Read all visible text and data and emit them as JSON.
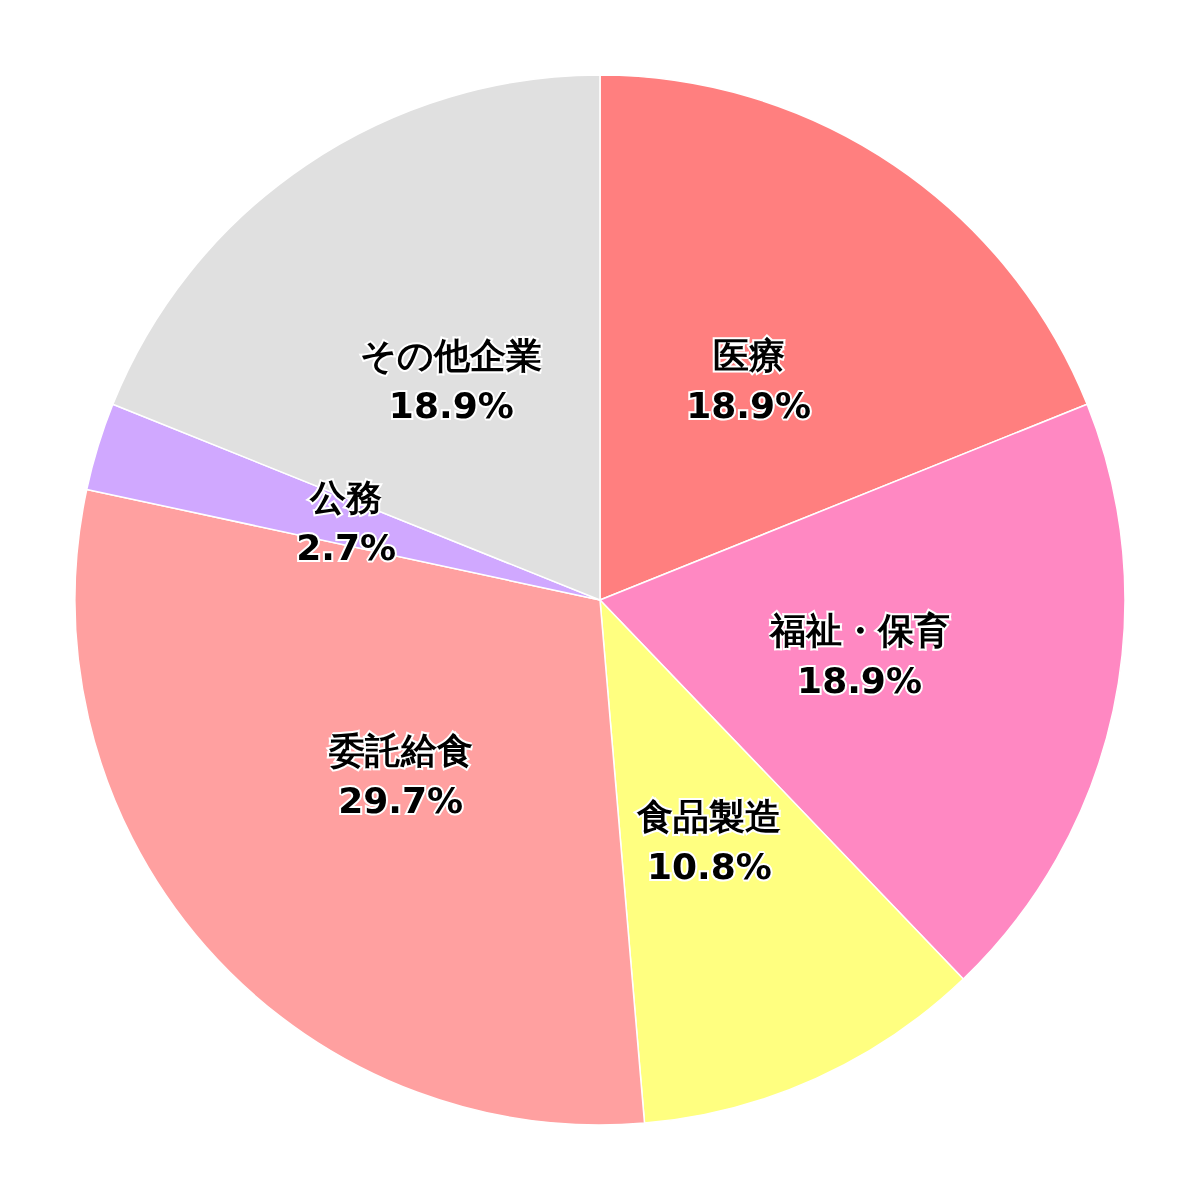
{
  "chart_data": {
    "type": "pie",
    "categories": [
      "医療",
      "福祉・保育",
      "食品製造",
      "委託給食",
      "公務",
      "その他企業"
    ],
    "values": [
      18.9,
      18.9,
      10.8,
      29.7,
      2.7,
      18.9
    ],
    "value_labels": [
      "18.9%",
      "18.9%",
      "10.8%",
      "29.7%",
      "2.7%",
      "18.9%"
    ],
    "colors": [
      "#ff7f7f",
      "#ff88c2",
      "#ffff80",
      "#ffa0a0",
      "#d0a8ff",
      "#e0e0e0"
    ]
  }
}
